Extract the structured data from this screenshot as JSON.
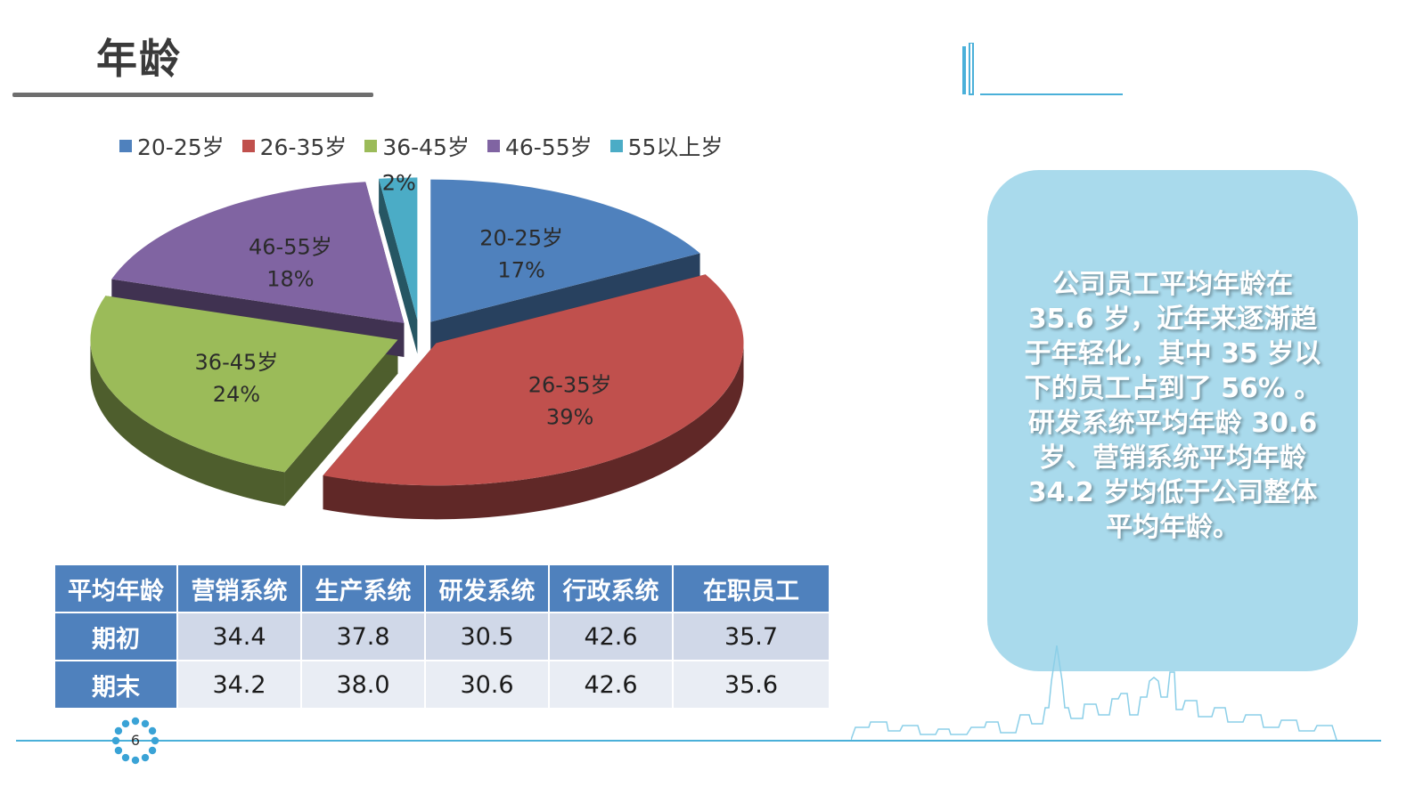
{
  "title": "年龄",
  "chart_data": {
    "type": "pie",
    "categories": [
      "20-25岁",
      "26-35岁",
      "36-45岁",
      "46-55岁",
      "55以上岁"
    ],
    "values": [
      17,
      39,
      24,
      18,
      2
    ],
    "labels": [
      "17%",
      "39%",
      "24%",
      "18%",
      "2%"
    ],
    "colors": [
      "#4f81bd",
      "#c0504d",
      "#9bbb59",
      "#8064a2",
      "#4bacc6"
    ],
    "legend_position": "top",
    "exploded": true,
    "three_d": true
  },
  "table": {
    "headers": [
      "平均年龄",
      "营销系统",
      "生产系统",
      "研发系统",
      "行政系统",
      "在职员工"
    ],
    "rows": [
      {
        "label": "期初",
        "values": [
          "34.4",
          "37.8",
          "30.5",
          "42.6",
          "35.7"
        ]
      },
      {
        "label": "期末",
        "values": [
          "34.2",
          "38.0",
          "30.6",
          "42.6",
          "35.6"
        ]
      }
    ]
  },
  "callout": {
    "lines": [
      "公司员工平均年龄在",
      "35.6 岁，近年来逐渐趋",
      "于年轻化，其中 35 岁以",
      "下的员工占到了 56% 。",
      "研发系统平均年龄 30.6",
      "岁、营销系统平均年龄",
      "34.2 岁均低于公司整体",
      "平均年龄。"
    ]
  },
  "page_number": "6"
}
